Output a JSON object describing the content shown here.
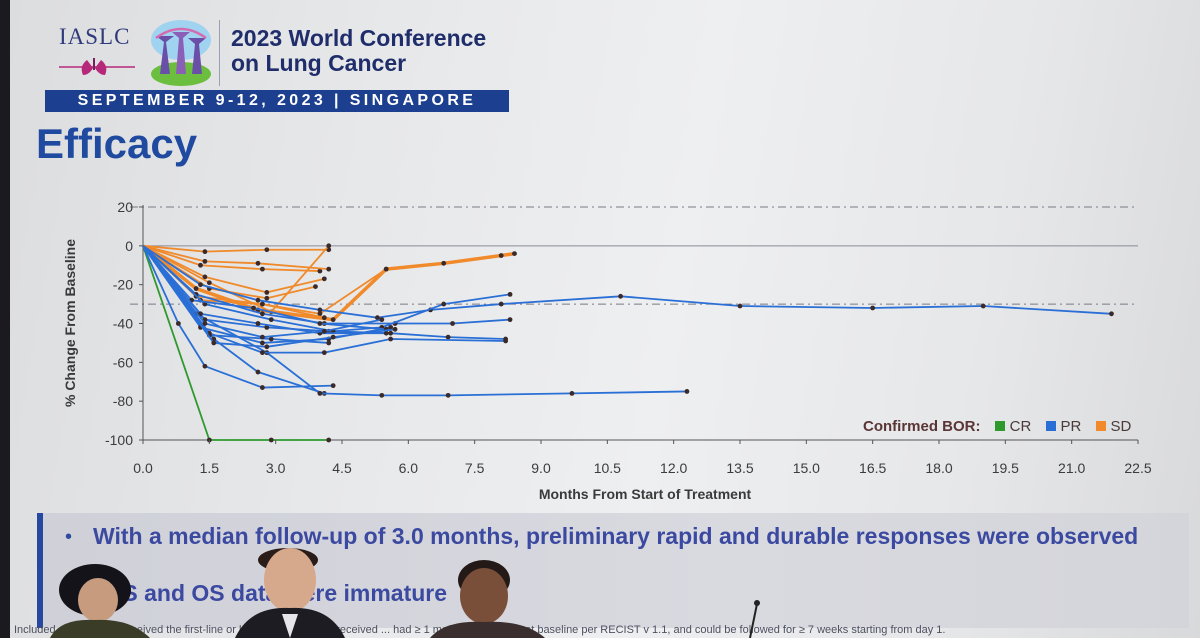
{
  "header": {
    "org": "IASLC",
    "conference_title_line1": "2023 World Conference",
    "conference_title_line2": "on Lung Cancer",
    "date_location": "SEPTEMBER 9-12, 2023 | SINGAPORE",
    "slide_title": "Efficacy"
  },
  "chart_data": {
    "type": "line",
    "title": "",
    "xlabel": "Months From Start of Treatment",
    "ylabel": "% Change From Baseline",
    "xlim": [
      0,
      22.5
    ],
    "ylim": [
      -100,
      20
    ],
    "xticks": [
      "0.0",
      "1.5",
      "3.0",
      "4.5",
      "6.0",
      "7.5",
      "9.0",
      "10.5",
      "12.0",
      "13.5",
      "15.0",
      "16.5",
      "18.0",
      "19.5",
      "21.0",
      "22.5"
    ],
    "yticks": [
      "20",
      "0",
      "-20",
      "-40",
      "-60",
      "-80",
      "-100"
    ],
    "reference_lines": [
      20,
      0,
      -30
    ],
    "legend": {
      "title": "Confirmed BOR:",
      "position": "bottom-right",
      "items": [
        {
          "label": "CR",
          "color": "#2e9a2e"
        },
        {
          "label": "PR",
          "color": "#2a6fd6"
        },
        {
          "label": "SD",
          "color": "#f08a2a"
        }
      ]
    },
    "series": [
      {
        "bor": "CR",
        "x": [
          0,
          1.5,
          2.9,
          4.2
        ],
        "y": [
          0,
          -100,
          -100,
          -100
        ]
      },
      {
        "bor": "PR",
        "x": [
          0,
          0.8,
          1.4,
          2.7,
          4.3
        ],
        "y": [
          0,
          -40,
          -62,
          -73,
          -72
        ]
      },
      {
        "bor": "PR",
        "x": [
          0,
          1.0,
          1.6,
          2.6,
          4.1
        ],
        "y": [
          0,
          -30,
          -48,
          -65,
          -76
        ]
      },
      {
        "bor": "PR",
        "x": [
          0,
          1.2,
          2.8,
          4.0,
          5.4,
          6.9,
          9.7,
          12.3
        ],
        "y": [
          0,
          -35,
          -55,
          -76,
          -77,
          -77,
          -76,
          -75
        ]
      },
      {
        "bor": "PR",
        "x": [
          0,
          1.3,
          2.6,
          4.0,
          5.3,
          6.5,
          8.1,
          10.8,
          13.5,
          16.5,
          19.0,
          21.9
        ],
        "y": [
          0,
          -20,
          -28,
          -33,
          -37,
          -33,
          -30,
          -26,
          -31,
          -32,
          -31,
          -35
        ]
      },
      {
        "bor": "PR",
        "x": [
          0,
          1.2,
          2.7,
          4.1,
          5.7,
          7.0,
          8.3
        ],
        "y": [
          0,
          -25,
          -35,
          -40,
          -40,
          -40,
          -38
        ]
      },
      {
        "bor": "PR",
        "x": [
          0,
          1.4,
          2.8,
          4.2,
          5.6,
          6.9,
          8.2
        ],
        "y": [
          0,
          -38,
          -42,
          -44,
          -45,
          -47,
          -48
        ]
      },
      {
        "bor": "PR",
        "x": [
          0,
          1.3,
          2.7,
          4.2,
          5.6
        ],
        "y": [
          0,
          -42,
          -50,
          -48,
          -42
        ]
      },
      {
        "bor": "PR",
        "x": [
          0,
          1.4,
          2.9,
          4.3,
          5.4,
          6.8,
          8.3
        ],
        "y": [
          0,
          -30,
          -38,
          -44,
          -42,
          -30,
          -25
        ]
      },
      {
        "bor": "PR",
        "x": [
          0,
          1.5,
          2.7,
          4.1,
          5.6,
          8.2
        ],
        "y": [
          0,
          -45,
          -55,
          -55,
          -48,
          -49
        ]
      },
      {
        "bor": "PR",
        "x": [
          0,
          1.1,
          2.5,
          4.0,
          5.5
        ],
        "y": [
          0,
          -28,
          -32,
          -40,
          -43
        ]
      },
      {
        "bor": "PR",
        "x": [
          0,
          1.5,
          2.9,
          4.2
        ],
        "y": [
          0,
          -46,
          -48,
          -50
        ]
      },
      {
        "bor": "PR",
        "x": [
          0,
          1.3,
          2.6,
          4.0,
          5.5
        ],
        "y": [
          0,
          -35,
          -40,
          -45,
          -45
        ]
      },
      {
        "bor": "PR",
        "x": [
          0,
          1.6,
          2.8,
          4.3,
          5.7
        ],
        "y": [
          0,
          -50,
          -52,
          -47,
          -43
        ]
      },
      {
        "bor": "PR",
        "x": [
          0,
          1.4,
          2.7,
          4.1,
          5.4
        ],
        "y": [
          0,
          -40,
          -47,
          -44,
          -38
        ]
      },
      {
        "bor": "SD",
        "x": [
          0,
          1.4,
          2.8,
          4.2
        ],
        "y": [
          0,
          -3,
          -2,
          -2
        ]
      },
      {
        "bor": "SD",
        "x": [
          0,
          1.3,
          2.7,
          4.0
        ],
        "y": [
          0,
          -10,
          -12,
          -13
        ]
      },
      {
        "bor": "SD",
        "x": [
          0,
          1.4,
          2.8,
          4.1
        ],
        "y": [
          0,
          -16,
          -24,
          -17
        ]
      },
      {
        "bor": "SD",
        "x": [
          0,
          1.5,
          2.9,
          4.2
        ],
        "y": [
          0,
          -19,
          -34,
          0
        ]
      },
      {
        "bor": "SD",
        "x": [
          0,
          1.3,
          2.7,
          4.0,
          5.5
        ],
        "y": [
          0,
          -28,
          -30,
          -35,
          -12
        ]
      },
      {
        "bor": "SD",
        "x": [
          0,
          1.2,
          2.6,
          4.3,
          5.5,
          6.8,
          8.1,
          8.4
        ],
        "y": [
          0,
          -22,
          -33,
          -38,
          -12,
          -9,
          -5,
          -4
        ]
      },
      {
        "bor": "SD",
        "x": [
          0,
          1.4,
          2.6,
          4.2
        ],
        "y": [
          0,
          -8,
          -9,
          -12
        ]
      },
      {
        "bor": "SD",
        "x": [
          0,
          1.2,
          2.7,
          4.1
        ],
        "y": [
          0,
          -26,
          -30,
          -37
        ]
      },
      {
        "bor": "SD",
        "x": [
          0,
          1.5,
          2.8,
          3.9
        ],
        "y": [
          0,
          -22,
          -27,
          -21
        ]
      }
    ]
  },
  "bullet": {
    "text": "With a median follow-up of 3.0 months, preliminary rapid and durable responses were observed",
    "text2": "PFS and OS data were immature"
  },
  "footnote": "Included patients had received the first-line or later treatment who received ... had ≥ 1 measurable lesion at baseline per RECIST v 1.1, and could be followed for ≥ 7 weeks starting from day 1."
}
